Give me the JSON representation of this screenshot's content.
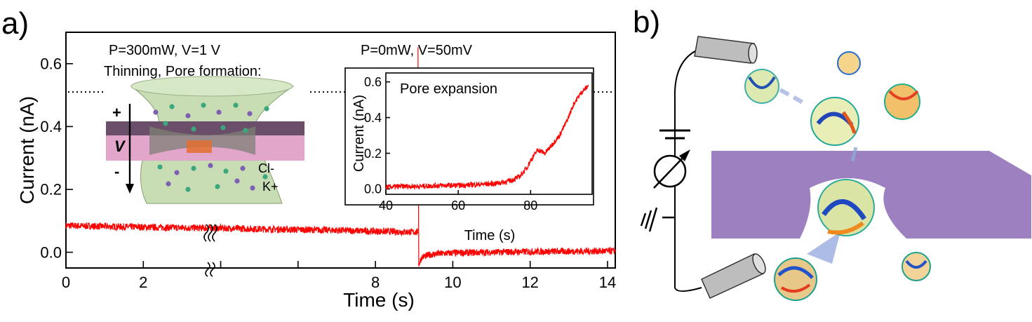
{
  "panel_a": {
    "label": "a)",
    "ann_left": "P=300mW, V=1 V",
    "ann_left2": "Thinning, Pore formation:",
    "ann_right": "P=0mW, V=50mV",
    "schematic": {
      "plus": "+",
      "minus": "-",
      "v": "V",
      "cl": "Cl-",
      "k": "K+"
    }
  },
  "panel_b": {
    "label": "b)"
  },
  "chart_data": [
    {
      "type": "line",
      "xlabel": "Time (s)",
      "ylabel": "Current (nA)",
      "xlim": [
        0,
        14.2
      ],
      "ylim": [
        -0.05,
        0.7
      ],
      "xticks": [
        0,
        2,
        4,
        6,
        8,
        10,
        12,
        14
      ],
      "xtick_labels": [
        "0",
        "2",
        "",
        "",
        "8",
        "10",
        "12",
        "14"
      ],
      "yticks": [
        0.0,
        0.2,
        0.4,
        0.6
      ],
      "ytick_labels": [
        "0.0",
        "0.2",
        "0.4",
        "0.6"
      ],
      "axis_break_at_x": 4.4,
      "dotted_reference_y": 0.51,
      "color": "#ff0000",
      "series": [
        {
          "x": [
            0,
            1,
            2,
            3,
            4,
            5,
            6,
            7,
            8,
            9.1
          ],
          "y": [
            0.085,
            0.082,
            0.08,
            0.078,
            0.077,
            0.074,
            0.072,
            0.07,
            0.067,
            0.064
          ]
        },
        {
          "x": [
            9.1,
            9.12,
            9.2,
            9.4,
            9.6,
            10,
            11,
            12,
            13,
            14.2
          ],
          "y": [
            0.66,
            -0.04,
            -0.015,
            -0.008,
            -0.005,
            -0.002,
            0.0,
            0.002,
            0.003,
            0.004
          ]
        }
      ]
    },
    {
      "type": "line",
      "title": "Pore expansion",
      "xlabel": "Time (s)",
      "ylabel": "Current (nA)",
      "xlim": [
        40,
        97
      ],
      "ylim": [
        -0.03,
        0.65
      ],
      "xticks": [
        40,
        60,
        80
      ],
      "xtick_labels": [
        "40",
        "60",
        "80"
      ],
      "yticks": [
        0.0,
        0.2,
        0.4,
        0.6
      ],
      "ytick_labels": [
        "0.0",
        "0.2",
        "0.4",
        "0.6"
      ],
      "color": "#ff0000",
      "series": [
        {
          "x": [
            40,
            45,
            50,
            55,
            60,
            65,
            70,
            73,
            75,
            77,
            79,
            80,
            82,
            84,
            86,
            88,
            90,
            92,
            94,
            96
          ],
          "y": [
            0.01,
            0.015,
            0.015,
            0.02,
            0.02,
            0.025,
            0.03,
            0.04,
            0.05,
            0.07,
            0.12,
            0.16,
            0.22,
            0.2,
            0.25,
            0.3,
            0.38,
            0.48,
            0.54,
            0.58
          ]
        }
      ]
    }
  ]
}
